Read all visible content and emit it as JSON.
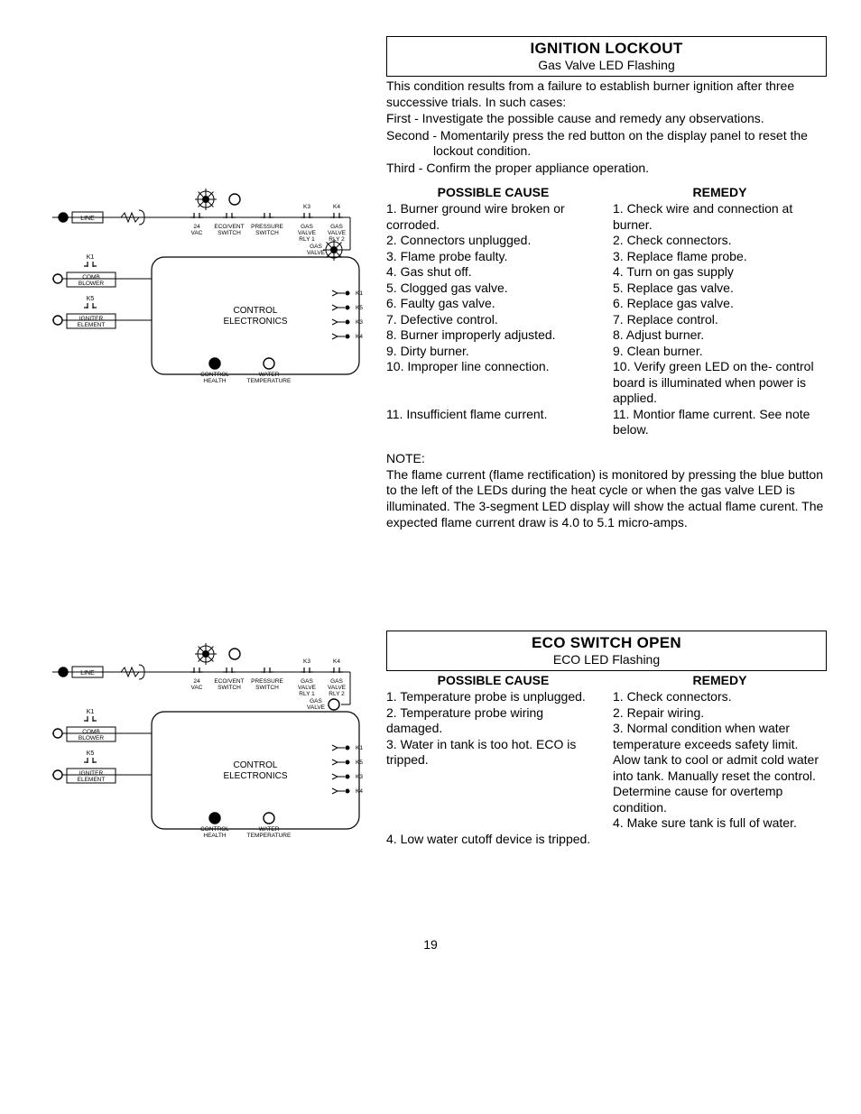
{
  "page_number": "19",
  "colors": {
    "text": "#000000",
    "bg": "#ffffff",
    "border": "#000000",
    "led_on": "#000000",
    "led_off": "#ffffff"
  },
  "sections": [
    {
      "id": "ignition-lockout",
      "title": "IGNITION LOCKOUT",
      "subtitle": "Gas Valve LED Flashing",
      "intro": [
        "This condition results from a failure to establish burner ignition after three successive trials.  In such cases:",
        "First - Investigate the possible cause and remedy any observations.",
        "Second - Momentarily press the red button on the display panel to reset the lockout condition.",
        "Third - Confirm the proper appliance operation."
      ],
      "cause_heading": "POSSIBLE CAUSE",
      "remedy_heading": "REMEDY",
      "causes": [
        "1. Burner ground wire broken or corroded.",
        "2. Connectors unplugged.",
        "3. Flame probe faulty.",
        "4. Gas shut off.",
        "5. Clogged gas valve.",
        "6. Faulty gas valve.",
        "7. Defective control.",
        "8. Burner improperly adjusted.",
        "9. Dirty burner.",
        "10. Improper line connection.",
        "",
        "",
        "11. Insufficient flame current."
      ],
      "remedies": [
        "1. Check wire and connection at burner.",
        "2. Check connectors.",
        "3. Replace flame probe.",
        "4. Turn on gas supply",
        "5. Replace gas valve.",
        "6. Replace gas valve.",
        "7. Replace control.",
        "8. Adjust burner.",
        "9. Clean burner.",
        "10. Verify green LED on the- control board is illuminated when power is applied.",
        "11. Montior flame current. See note below."
      ],
      "note_label": "NOTE:",
      "note": "The flame current (flame rectification) is monitored by pressing the blue button to the left of the LEDs during the heat cycle or when the gas valve LED is illuminated.  The 3-segment LED display will show the actual flame curent.  The expected flame current draw is 4.0 to 5.1 micro-amps.",
      "diagram": {
        "type": "schematic",
        "box_label": "CONTROL ELECTRONICS",
        "top_center_led": "flashing",
        "gas_valve_led": "flashing",
        "left_leds": [
          {
            "label": "LINE",
            "on": true
          },
          {
            "label": "COMB BLOWER",
            "k": "K1",
            "on": false
          },
          {
            "label": "IGNITER ELEMENT",
            "k": "K5",
            "on": false
          }
        ],
        "top_switches": [
          {
            "label": "24 VAC"
          },
          {
            "label": "ECO/VENT SWITCH"
          },
          {
            "label": "PRESSURE SWITCH"
          },
          {
            "label": "GAS VALVE RLY 1",
            "k": "K3"
          },
          {
            "label": "GAS VALVE RLY 2",
            "k": "K4"
          }
        ],
        "right_arrows": [
          "K1",
          "K5",
          "K3",
          "K4"
        ],
        "bottom_leds": [
          {
            "label": "CONTROL HEALTH",
            "on": true
          },
          {
            "label": "WATER TEMPERATURE",
            "on": false
          }
        ],
        "gas_valve_label": "GAS VALVE"
      }
    },
    {
      "id": "eco-switch-open",
      "title": "ECO SWITCH OPEN",
      "subtitle": "ECO LED Flashing",
      "cause_heading": "POSSIBLE CAUSE",
      "remedy_heading": "REMEDY",
      "causes": [
        "1. Temperature probe is unplugged.",
        "2. Temperature probe wiring damaged.",
        "3. Water in tank is too hot. ECO is tripped.",
        "",
        "",
        "",
        "",
        "4. Low water cutoff device is tripped."
      ],
      "remedies": [
        "1. Check connectors.",
        "2. Repair wiring.",
        "3. Normal condition when water temperature exceeds safety limit.  Alow tank to cool or admit cold water into tank. Manually reset the control. Determine cause for overtemp condition.",
        "4. Make sure tank is full of water."
      ],
      "diagram": {
        "type": "schematic",
        "box_label": "CONTROL ELECTRONICS",
        "top_center_led": "flashing",
        "gas_valve_led": "off",
        "left_leds": [
          {
            "label": "LINE",
            "on": true
          },
          {
            "label": "COMB BLOWER",
            "k": "K1",
            "on": false
          },
          {
            "label": "IGNITER ELEMENT",
            "k": "K5",
            "on": false
          }
        ],
        "top_switches": [
          {
            "label": "24 VAC"
          },
          {
            "label": "ECO/VENT SWITCH"
          },
          {
            "label": "PRESSURE SWITCH"
          },
          {
            "label": "GAS VALVE RLY 1",
            "k": "K3"
          },
          {
            "label": "GAS VALVE RLY 2",
            "k": "K4"
          }
        ],
        "right_arrows": [
          "K1",
          "K5",
          "K3",
          "K4"
        ],
        "bottom_leds": [
          {
            "label": "CONTROL HEALTH",
            "on": true
          },
          {
            "label": "WATER TEMPERATURE",
            "on": false
          }
        ],
        "gas_valve_label": "GAS VALVE"
      }
    }
  ]
}
